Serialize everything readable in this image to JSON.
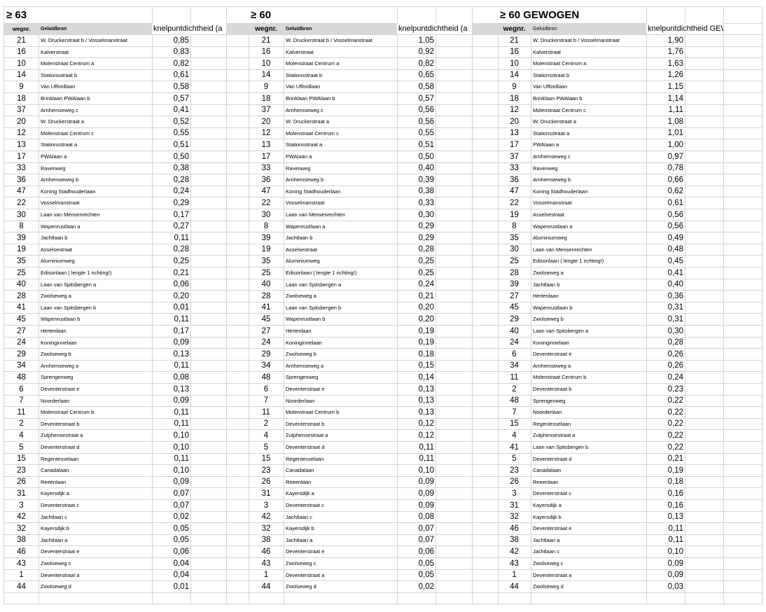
{
  "tables": [
    {
      "title": "≥ 63",
      "headers": {
        "wegnr": "wegnr.",
        "geluidbron": "Geluidbron",
        "value": "knelpuntdichtheid (a"
      },
      "rows": [
        [
          "21",
          "W. Druckerstraat b / Vosselmanstraat",
          "0,85"
        ],
        [
          "16",
          "Kalverstraat",
          "0,83"
        ],
        [
          "10",
          "Molenstraat Centrum a",
          "0,82"
        ],
        [
          "14",
          "Stationsstraat b",
          "0,61"
        ],
        [
          "9",
          "Van Uffordlaan",
          "0,58"
        ],
        [
          "18",
          "Brinklaan  PWAlaan b",
          "0,57"
        ],
        [
          "37",
          "Arnhemseweg c",
          "0,41"
        ],
        [
          "20",
          "W. Druckerstraat a",
          "0,52"
        ],
        [
          "12",
          "Molenstraat Centrum c",
          "0,55"
        ],
        [
          "13",
          "Stationsstraat a",
          "0,51"
        ],
        [
          "17",
          "PWAlaan a",
          "0,50"
        ],
        [
          "33",
          "Ravenweg",
          "0,38"
        ],
        [
          "36",
          "Arnhemseweg b",
          "0,28"
        ],
        [
          "47",
          "Koning Stadhouderlaan",
          "0,24"
        ],
        [
          "22",
          "Vosselmanstraat",
          "0,29"
        ],
        [
          "30",
          "Laan van Mensenrechten",
          "0,17"
        ],
        [
          "8",
          "Wapenrustlaan a",
          "0,27"
        ],
        [
          "39",
          "Jachtlaan b",
          "0,11"
        ],
        [
          "19",
          "Asselsestraat",
          "0,28"
        ],
        [
          "35",
          "Aluminiumweg",
          "0,25"
        ],
        [
          "25",
          "Edisonlaan ( lengte 1 richting!)",
          "0,21"
        ],
        [
          "40",
          "Laan van Spitsbergen a",
          "0,06"
        ],
        [
          "28",
          "Zwolseweg a",
          "0,20"
        ],
        [
          "41",
          "Laan van Spitsbergen b",
          "0,01"
        ],
        [
          "45",
          "Wapenrustlaan b",
          "0,11"
        ],
        [
          "27",
          "Hertenlaan",
          "0,17"
        ],
        [
          "24",
          "Koninginnelaan",
          "0,09"
        ],
        [
          "29",
          "Zwolseweg b",
          "0,13"
        ],
        [
          "34",
          "Arnhemseweg a",
          "0,11"
        ],
        [
          "48",
          "Sprengenweg",
          "0,08"
        ],
        [
          "6",
          "Deventerstraat e",
          "0,13"
        ],
        [
          "7",
          "Noorderlaan",
          "0,09"
        ],
        [
          "11",
          "Molenstraat Centrum b",
          "0,11"
        ],
        [
          "2",
          "Deventerstraat b",
          "0,11"
        ],
        [
          "4",
          "Zutphensestraat a",
          "0,10"
        ],
        [
          "5",
          "Deventerstraat d",
          "0,10"
        ],
        [
          "15",
          "Regentesselaan",
          "0,11"
        ],
        [
          "23",
          "Canadalaan",
          "0,10"
        ],
        [
          "26",
          "Reeenlaan",
          "0,09"
        ],
        [
          "31",
          "Kayersdijk a",
          "0,07"
        ],
        [
          "3",
          "Deventerstraat c",
          "0,07"
        ],
        [
          "42",
          "Jachtlaan c",
          "0,02"
        ],
        [
          "32",
          "Kayersdijk b",
          "0,05"
        ],
        [
          "38",
          "Jachtlaan a",
          "0,05"
        ],
        [
          "46",
          "Deventerstraat e",
          "0,06"
        ],
        [
          "43",
          "Zwolseweg c",
          "0,04"
        ],
        [
          "1",
          "Deventerstraat a",
          "0,04"
        ],
        [
          "44",
          "Zwolseweg d",
          "0,01"
        ]
      ]
    },
    {
      "title": "≥ 60",
      "headers": {
        "wegnr": "wegnr.",
        "geluidbron": "Geluidbron",
        "value": "knelpuntdichtheid (a"
      },
      "rows": [
        [
          "21",
          "W. Druckerstraat b / Vosselmanstraat",
          "1,05"
        ],
        [
          "16",
          "Kalverstraat",
          "0,92"
        ],
        [
          "10",
          "Molenstraat Centrum a",
          "0,82"
        ],
        [
          "14",
          "Stationsstraat b",
          "0,65"
        ],
        [
          "9",
          "Van Uffordlaan",
          "0,58"
        ],
        [
          "18",
          "Brinklaan  PWAlaan b",
          "0,57"
        ],
        [
          "37",
          "Arnhemseweg c",
          "0,56"
        ],
        [
          "20",
          "W. Druckerstraat a",
          "0,56"
        ],
        [
          "12",
          "Molenstraat Centrum c",
          "0,55"
        ],
        [
          "13",
          "Stationsstraat a",
          "0,51"
        ],
        [
          "17",
          "PWAlaan a",
          "0,50"
        ],
        [
          "33",
          "Ravenweg",
          "0,40"
        ],
        [
          "36",
          "Arnhemseweg b",
          "0,39"
        ],
        [
          "47",
          "Koning Stadhouderlaan",
          "0,38"
        ],
        [
          "22",
          "Vosselmanstraat",
          "0,33"
        ],
        [
          "30",
          "Laan van Mensenrechten",
          "0,30"
        ],
        [
          "8",
          "Wapenrustlaan a",
          "0,29"
        ],
        [
          "39",
          "Jachtlaan b",
          "0,29"
        ],
        [
          "19",
          "Asselsestraat",
          "0,28"
        ],
        [
          "35",
          "Aluminiumweg",
          "0,25"
        ],
        [
          "25",
          "Edisonlaan ( lengte 1 richting!)",
          "0,25"
        ],
        [
          "40",
          "Laan van Spitsbergen a",
          "0,24"
        ],
        [
          "28",
          "Zwolseweg a",
          "0,21"
        ],
        [
          "41",
          "Laan van Spitsbergen b",
          "0,20"
        ],
        [
          "45",
          "Wapenrustlaan b",
          "0,20"
        ],
        [
          "27",
          "Hertenlaan",
          "0,19"
        ],
        [
          "24",
          "Koninginnelaan",
          "0,19"
        ],
        [
          "29",
          "Zwolseweg b",
          "0,18"
        ],
        [
          "34",
          "Arnhemseweg a",
          "0,15"
        ],
        [
          "48",
          "Sprengenweg",
          "0,14"
        ],
        [
          "6",
          "Deventerstraat e",
          "0,13"
        ],
        [
          "7",
          "Noorderlaan",
          "0,13"
        ],
        [
          "11",
          "Molenstraat Centrum b",
          "0,13"
        ],
        [
          "2",
          "Deventerstraat b",
          "0,12"
        ],
        [
          "4",
          "Zutphensestraat a",
          "0,12"
        ],
        [
          "5",
          "Deventerstraat d",
          "0,11"
        ],
        [
          "15",
          "Regentesselaan",
          "0,11"
        ],
        [
          "23",
          "Canadalaan",
          "0,10"
        ],
        [
          "26",
          "Reeenlaan",
          "0,09"
        ],
        [
          "31",
          "Kayersdijk a",
          "0,09"
        ],
        [
          "3",
          "Deventerstraat c",
          "0,09"
        ],
        [
          "42",
          "Jachtlaan c",
          "0,08"
        ],
        [
          "32",
          "Kayersdijk b",
          "0,07"
        ],
        [
          "38",
          "Jachtlaan a",
          "0,07"
        ],
        [
          "46",
          "Deventerstraat e",
          "0,06"
        ],
        [
          "43",
          "Zwolseweg c",
          "0,05"
        ],
        [
          "1",
          "Deventerstraat a",
          "0,05"
        ],
        [
          "44",
          "Zwolseweg d",
          "0,02"
        ]
      ]
    },
    {
      "title": "≥ 60 GEWOGEN",
      "headers": {
        "wegnr": "wegnr.",
        "geluidbron": "Geluidbron",
        "value": "knelpuntdichtheid GEWOGEN  ("
      },
      "rows": [
        [
          "21",
          "W. Druckerstraat b / Vosselmanstraat",
          "1,90"
        ],
        [
          "16",
          "Kalverstraat",
          "1,76"
        ],
        [
          "10",
          "Molenstraat Centrum a",
          "1,63"
        ],
        [
          "14",
          "Stationsstraat b",
          "1,26"
        ],
        [
          "9",
          "Van Uffordlaan",
          "1,15"
        ],
        [
          "18",
          "Brinklaan  PWAlaan b",
          "1,14"
        ],
        [
          "12",
          "Molenstraat Centrum c",
          "1,11"
        ],
        [
          "20",
          "W. Druckerstraat a",
          "1,08"
        ],
        [
          "13",
          "Stationsstraat a",
          "1,01"
        ],
        [
          "17",
          "PWAlaan a",
          "1,00"
        ],
        [
          "37",
          "Arnhemseweg c",
          "0,97"
        ],
        [
          "33",
          "Ravenweg",
          "0,78"
        ],
        [
          "36",
          "Arnhemseweg b",
          "0,66"
        ],
        [
          "47",
          "Koning Stadhouderlaan",
          "0,62"
        ],
        [
          "22",
          "Vosselmanstraat",
          "0,61"
        ],
        [
          "19",
          "Asselsestraat",
          "0,56"
        ],
        [
          "8",
          "Wapenrustlaan a",
          "0,56"
        ],
        [
          "35",
          "Aluminiumweg",
          "0,49"
        ],
        [
          "30",
          "Laan van Mensenrechten",
          "0,48"
        ],
        [
          "25",
          "Edisonlaan ( lengte 1 richting!)",
          "0,45"
        ],
        [
          "28",
          "Zwolseweg a",
          "0,41"
        ],
        [
          "39",
          "Jachtlaan b",
          "0,40"
        ],
        [
          "27",
          "Hertenlaan",
          "0,36"
        ],
        [
          "45",
          "Wapenrustlaan b",
          "0,31"
        ],
        [
          "29",
          "Zwolseweg b",
          "0,31"
        ],
        [
          "40",
          "Laan van Spitsbergen a",
          "0,30"
        ],
        [
          "24",
          "Koninginnelaan",
          "0,28"
        ],
        [
          "6",
          "Deventerstraat e",
          "0,26"
        ],
        [
          "34",
          "Arnhemseweg a",
          "0,26"
        ],
        [
          "11",
          "Molenstraat Centrum b",
          "0,24"
        ],
        [
          "2",
          "Deventerstraat b",
          "0,23"
        ],
        [
          "48",
          "Sprengenweg",
          "0,22"
        ],
        [
          "7",
          "Noorderlaan",
          "0,22"
        ],
        [
          "15",
          "Regentesselaan",
          "0,22"
        ],
        [
          "4",
          "Zutphensestraat a",
          "0,22"
        ],
        [
          "41",
          "Laan van Spitsbergen b",
          "0,22"
        ],
        [
          "5",
          "Deventerstraat d",
          "0,21"
        ],
        [
          "23",
          "Canadalaan",
          "0,19"
        ],
        [
          "26",
          "Reeenlaan",
          "0,18"
        ],
        [
          "3",
          "Deventerstraat c",
          "0,16"
        ],
        [
          "31",
          "Kayersdijk a",
          "0,16"
        ],
        [
          "32",
          "Kayersdijk b",
          "0,13"
        ],
        [
          "46",
          "Deventerstraat e",
          "0,11"
        ],
        [
          "38",
          "Jachtlaan a",
          "0,11"
        ],
        [
          "42",
          "Jachtlaan c",
          "0,10"
        ],
        [
          "43",
          "Zwolseweg c",
          "0,09"
        ],
        [
          "1",
          "Deventerstraat a",
          "0,09"
        ],
        [
          "44",
          "Zwolseweg d",
          "0,03"
        ]
      ]
    }
  ]
}
